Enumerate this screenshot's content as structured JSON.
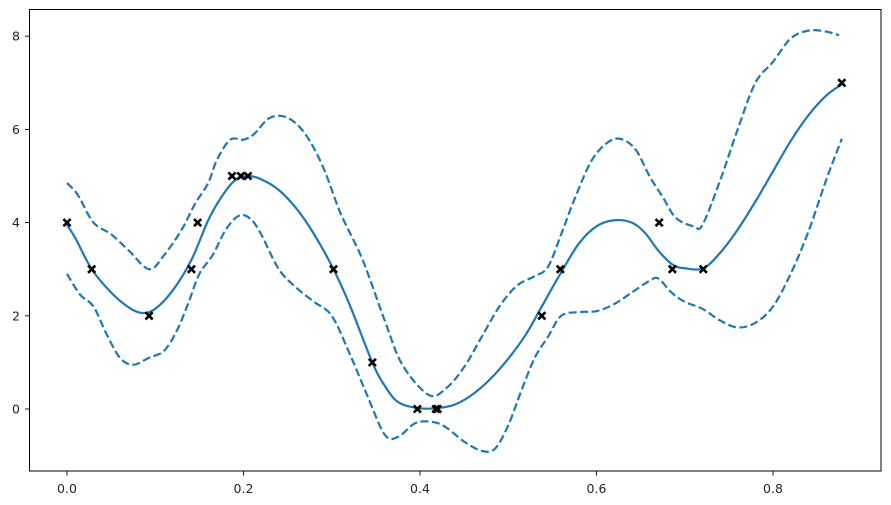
{
  "chart_data": {
    "type": "line",
    "title": "",
    "xlabel": "",
    "ylabel": "",
    "xlim": [
      -0.044,
      0.922
    ],
    "ylim": [
      -1.33,
      8.58
    ],
    "grid": false,
    "legend": null,
    "x_ticks": [
      0.0,
      0.2,
      0.4,
      0.6,
      0.8
    ],
    "x_tick_labels": [
      "0.0",
      "0.2",
      "0.4",
      "0.6",
      "0.8"
    ],
    "y_ticks": [
      0,
      2,
      4,
      6,
      8
    ],
    "y_tick_labels": [
      "0",
      "2",
      "4",
      "6",
      "8"
    ],
    "colors": {
      "line": "#1f77b4",
      "marker": "#000000",
      "axes": "#000000"
    },
    "observations": {
      "name": "data points",
      "marker": "x",
      "x": [
        0.0,
        0.028,
        0.093,
        0.141,
        0.148,
        0.187,
        0.197,
        0.205,
        0.302,
        0.346,
        0.397,
        0.418,
        0.42,
        0.538,
        0.559,
        0.671,
        0.686,
        0.721,
        0.878
      ],
      "y": [
        4,
        3,
        2,
        3,
        4,
        5,
        5,
        5,
        3,
        1,
        0,
        0,
        0,
        2,
        3,
        4,
        3,
        3,
        7
      ]
    },
    "series": [
      {
        "name": "mean",
        "style": "solid",
        "x": [
          0.0,
          0.01,
          0.028,
          0.05,
          0.07,
          0.085,
          0.1,
          0.12,
          0.141,
          0.16,
          0.175,
          0.19,
          0.205,
          0.22,
          0.24,
          0.26,
          0.28,
          0.302,
          0.32,
          0.346,
          0.36,
          0.375,
          0.397,
          0.42,
          0.44,
          0.46,
          0.48,
          0.5,
          0.52,
          0.538,
          0.559,
          0.58,
          0.6,
          0.62,
          0.64,
          0.655,
          0.67,
          0.686,
          0.7,
          0.721,
          0.74,
          0.76,
          0.78,
          0.8,
          0.82,
          0.84,
          0.86,
          0.878
        ],
        "y": [
          3.95,
          3.65,
          3.0,
          2.5,
          2.18,
          2.06,
          2.15,
          2.55,
          3.2,
          4.05,
          4.55,
          4.9,
          5.0,
          4.93,
          4.7,
          4.3,
          3.75,
          3.0,
          2.25,
          1.0,
          0.5,
          0.15,
          0.02,
          0.02,
          0.1,
          0.32,
          0.65,
          1.08,
          1.6,
          2.2,
          2.9,
          3.55,
          3.92,
          4.05,
          4.0,
          3.78,
          3.4,
          3.1,
          3.02,
          3.02,
          3.35,
          3.85,
          4.45,
          5.1,
          5.75,
          6.3,
          6.72,
          6.97
        ]
      },
      {
        "name": "upper bound",
        "style": "dashed",
        "x": [
          0.0,
          0.012,
          0.03,
          0.05,
          0.07,
          0.093,
          0.11,
          0.13,
          0.145,
          0.16,
          0.17,
          0.185,
          0.2,
          0.212,
          0.23,
          0.25,
          0.27,
          0.29,
          0.31,
          0.335,
          0.36,
          0.38,
          0.41,
          0.43,
          0.45,
          0.47,
          0.49,
          0.51,
          0.53,
          0.545,
          0.56,
          0.575,
          0.595,
          0.615,
          0.63,
          0.645,
          0.66,
          0.675,
          0.69,
          0.71,
          0.72,
          0.74,
          0.76,
          0.78,
          0.8,
          0.82,
          0.84,
          0.86,
          0.875
        ],
        "y": [
          4.85,
          4.6,
          4.0,
          3.75,
          3.4,
          3.0,
          3.3,
          3.85,
          4.4,
          4.85,
          5.35,
          5.78,
          5.78,
          5.9,
          6.25,
          6.25,
          5.9,
          5.2,
          4.2,
          3.2,
          1.9,
          0.95,
          0.3,
          0.45,
          0.9,
          1.55,
          2.2,
          2.65,
          2.85,
          3.05,
          3.75,
          4.5,
          5.35,
          5.75,
          5.78,
          5.55,
          5.0,
          4.55,
          4.1,
          3.92,
          3.95,
          4.9,
          6.0,
          7.0,
          7.45,
          7.95,
          8.12,
          8.1,
          8.02
        ]
      },
      {
        "name": "lower bound",
        "style": "dashed",
        "x": [
          0.0,
          0.015,
          0.03,
          0.045,
          0.06,
          0.075,
          0.093,
          0.11,
          0.125,
          0.138,
          0.15,
          0.165,
          0.18,
          0.195,
          0.208,
          0.22,
          0.24,
          0.26,
          0.28,
          0.3,
          0.32,
          0.34,
          0.36,
          0.375,
          0.395,
          0.415,
          0.43,
          0.45,
          0.47,
          0.485,
          0.5,
          0.515,
          0.53,
          0.545,
          0.56,
          0.58,
          0.6,
          0.62,
          0.64,
          0.66,
          0.67,
          0.685,
          0.7,
          0.72,
          0.74,
          0.76,
          0.78,
          0.8,
          0.82,
          0.84,
          0.86,
          0.878
        ],
        "y": [
          2.9,
          2.45,
          2.2,
          1.6,
          1.1,
          0.95,
          1.1,
          1.25,
          1.7,
          2.3,
          2.9,
          3.3,
          3.85,
          4.15,
          4.08,
          3.75,
          3.0,
          2.6,
          2.3,
          2.0,
          1.2,
          0.3,
          -0.55,
          -0.6,
          -0.3,
          -0.28,
          -0.4,
          -0.7,
          -0.9,
          -0.85,
          -0.35,
          0.4,
          1.1,
          1.55,
          2.0,
          2.08,
          2.1,
          2.25,
          2.5,
          2.75,
          2.8,
          2.5,
          2.3,
          2.15,
          1.9,
          1.75,
          1.85,
          2.2,
          2.9,
          3.8,
          4.9,
          5.8
        ]
      }
    ]
  }
}
